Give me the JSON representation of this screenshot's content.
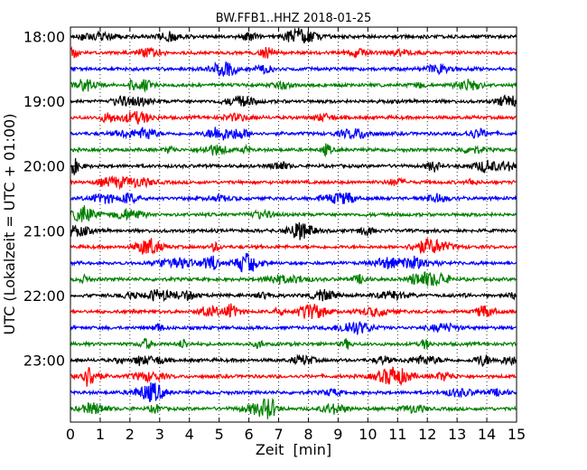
{
  "chart_data": {
    "type": "line",
    "title": "BW.FFB1..HHZ 2018-01-25",
    "xlabel": "Zeit  [min]",
    "ylabel": "UTC (Lokalzeit = UTC + 01:00)",
    "xlim": [
      0,
      15
    ],
    "x_ticks": [
      "0",
      "1",
      "2",
      "3",
      "4",
      "5",
      "6",
      "7",
      "8",
      "9",
      "10",
      "11",
      "12",
      "13",
      "14",
      "15"
    ],
    "y_ticks": [
      "18:00",
      "19:00",
      "20:00",
      "21:00",
      "22:00",
      "23:00"
    ],
    "trace_start_times": [
      "18:00",
      "18:15",
      "18:30",
      "18:45",
      "19:00",
      "19:15",
      "19:30",
      "19:45",
      "20:00",
      "20:15",
      "20:30",
      "20:45",
      "21:00",
      "21:15",
      "21:30",
      "21:45",
      "22:00",
      "22:15",
      "22:30",
      "22:45",
      "23:00",
      "23:15",
      "23:30",
      "23:45"
    ],
    "trace_minutes_per_line": 15,
    "color_cycle": [
      "#000000",
      "#ff0000",
      "#0000ff",
      "#008000"
    ],
    "grid_x": "dotted",
    "grid_y": false
  }
}
